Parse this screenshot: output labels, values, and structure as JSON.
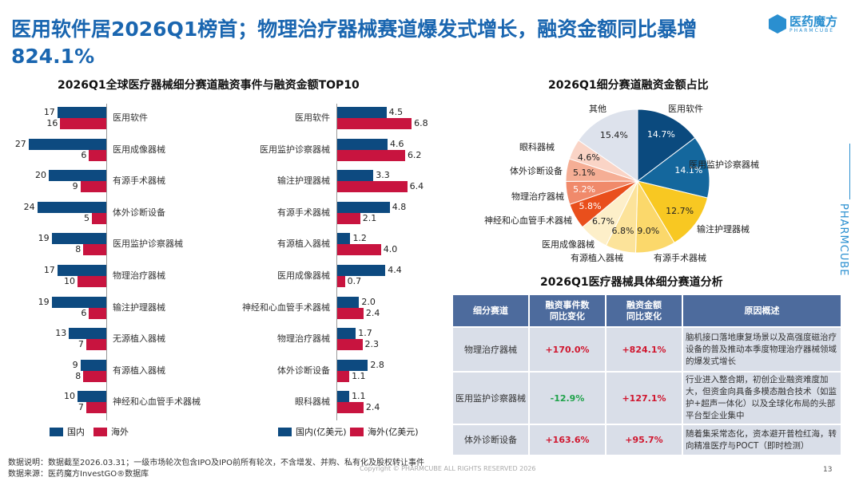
{
  "title": "医用软件居2026Q1榜首；物理治疗器械赛道爆发式增长，融资金额同比暴增824.1%",
  "logo": {
    "cn": "医药魔方",
    "en": "PHARMCUBE"
  },
  "brand_vertical": "PHARMCUBE",
  "chart_data": [
    {
      "type": "bar",
      "orientation": "horizontal",
      "title": "2026Q1全球医疗器械细分赛道融资事件与融资金额TOP10",
      "categories": [
        "医用软件",
        "医用成像器械",
        "有源手术器械",
        "体外诊断设备",
        "医用监护诊察器械",
        "物理治疗器械",
        "输注护理器械",
        "无源植入器械",
        "有源植入器械",
        "神经和心血管手术器械"
      ],
      "series": [
        {
          "name": "国内",
          "color": "#0d4a80",
          "values": [
            17,
            27,
            20,
            24,
            19,
            17,
            19,
            13,
            9,
            10
          ]
        },
        {
          "name": "海外",
          "color": "#c8143f",
          "values": [
            16,
            6,
            9,
            5,
            8,
            10,
            6,
            7,
            8,
            7
          ]
        }
      ],
      "direction": "leftward",
      "legend": "bottom-left"
    },
    {
      "type": "bar",
      "orientation": "horizontal",
      "categories": [
        "医用软件",
        "医用监护诊察器械",
        "输注护理器械",
        "有源手术器械",
        "有源植入器械",
        "医用成像器械",
        "神经和心血管手术器械",
        "物理治疗器械",
        "体外诊断设备",
        "眼科器械"
      ],
      "series": [
        {
          "name": "国内(亿美元)",
          "color": "#0d4a80",
          "values": [
            4.5,
            4.6,
            3.3,
            4.8,
            1.2,
            4.4,
            2.0,
            1.7,
            2.8,
            1.1
          ]
        },
        {
          "name": "海外(亿美元)",
          "color": "#c8143f",
          "values": [
            6.8,
            6.2,
            6.4,
            2.1,
            4.0,
            0.7,
            2.4,
            2.3,
            1.1,
            2.4
          ]
        }
      ],
      "direction": "rightward",
      "legend": "bottom"
    },
    {
      "type": "pie",
      "title": "2026Q1细分赛道融资金额占比",
      "slices": [
        {
          "label": "医用软件",
          "value": 14.7,
          "text": "14.7%",
          "color": "#0b4a7e"
        },
        {
          "label": "医用监护诊察器械",
          "value": 14.1,
          "text": "14.1%",
          "color": "#14679d"
        },
        {
          "label": "输注护理器械",
          "value": 12.7,
          "text": "12.7%",
          "color": "#f8c822"
        },
        {
          "label": "有源手术器械",
          "value": 9.0,
          "text": "9.0%",
          "color": "#fbd86b"
        },
        {
          "label": "有源植入器械",
          "value": 6.8,
          "text": "6.8%",
          "color": "#fce39a"
        },
        {
          "label": "医用成像器械",
          "value": 6.7,
          "text": "6.7%",
          "color": "#fdefc9"
        },
        {
          "label": "神经和心血管手术器械",
          "value": 5.8,
          "text": "5.8%",
          "color": "#e94f1c"
        },
        {
          "label": "物理治疗器械",
          "value": 5.2,
          "text": "5.2%",
          "color": "#f08a6b"
        },
        {
          "label": "体外诊断设备",
          "value": 5.1,
          "text": "5.1%",
          "color": "#f5ae95"
        },
        {
          "label": "眼科器械",
          "value": 4.6,
          "text": "4.6%",
          "color": "#fad4c6"
        },
        {
          "label": "其他",
          "value": 15.4,
          "text": "15.4%",
          "color": "#dde2ec"
        }
      ]
    }
  ],
  "table": {
    "title": "2026Q1医疗器械具体细分赛道分析",
    "headers": [
      "细分赛道",
      "融资事件数\n同比变化",
      "融资金额\n同比变化",
      "原因概述"
    ],
    "rows": [
      {
        "name": "物理治疗器械",
        "events": "+170.0%",
        "amount": "+824.1%",
        "reason": "脑机接口落地康复场景以及高强度磁治疗设备的普及推动本季度物理治疗器械领域的爆发式增长"
      },
      {
        "name": "医用监护诊察器械",
        "events": "-12.9%",
        "amount": "+127.1%",
        "reason": "行业进入整合期，初创企业融资难度加大，但资金向具备多模态融合技术（如监护+超声一体化）以及全球化布局的头部平台型企业集中"
      },
      {
        "name": "体外诊断设备",
        "events": "+163.6%",
        "amount": "+95.7%",
        "reason": "随着集采常态化，资本避开普检红海，转向精准医疗与POCT（即时检测）"
      }
    ]
  },
  "footer": {
    "note": "数据说明：数据截至2026.03.31；一级市场轮次包含IPO及IPO前所有轮次，不含增发、并购、私有化及股权转让事件",
    "source": "数据来源：医药魔方InvestGO®数据库",
    "copyright": "Copyright © PHARMCUBE ALL RIGHTS RESERVED 2026",
    "page": "13"
  }
}
